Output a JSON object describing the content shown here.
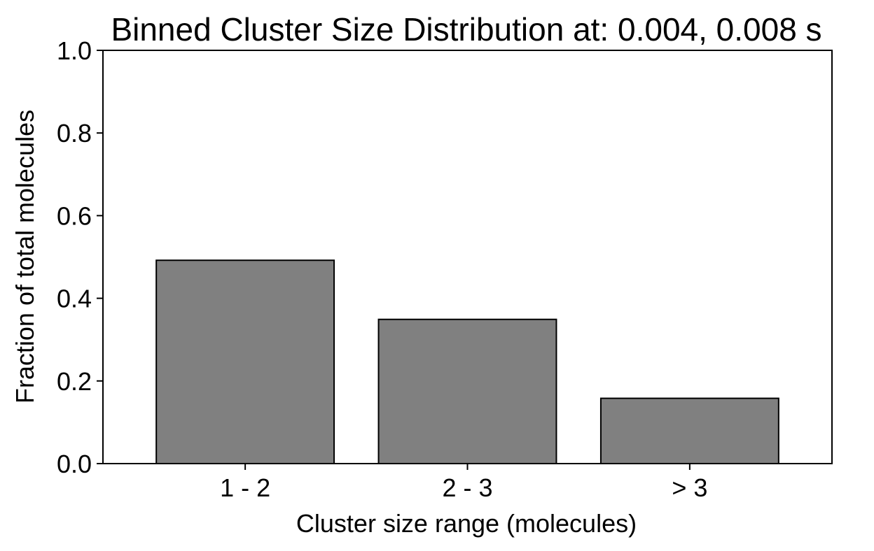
{
  "chart_data": {
    "type": "bar",
    "title": "Binned Cluster Size Distribution at: 0.004, 0.008 s",
    "xlabel": "Cluster size range (molecules)",
    "ylabel": "Fraction of total molecules",
    "categories": [
      "1 - 2",
      "2 - 3",
      "> 3"
    ],
    "values": [
      0.492,
      0.349,
      0.158
    ],
    "ylim": [
      0,
      1.0
    ],
    "yticks": [
      0.0,
      0.2,
      0.4,
      0.6,
      0.8,
      1.0
    ],
    "ytick_labels": [
      "0.0",
      "0.2",
      "0.4",
      "0.6",
      "0.8",
      "1.0"
    ],
    "grid": false,
    "colors": {
      "bar_fill": "#808080",
      "bar_edge": "#000000",
      "axis": "#000000"
    }
  }
}
